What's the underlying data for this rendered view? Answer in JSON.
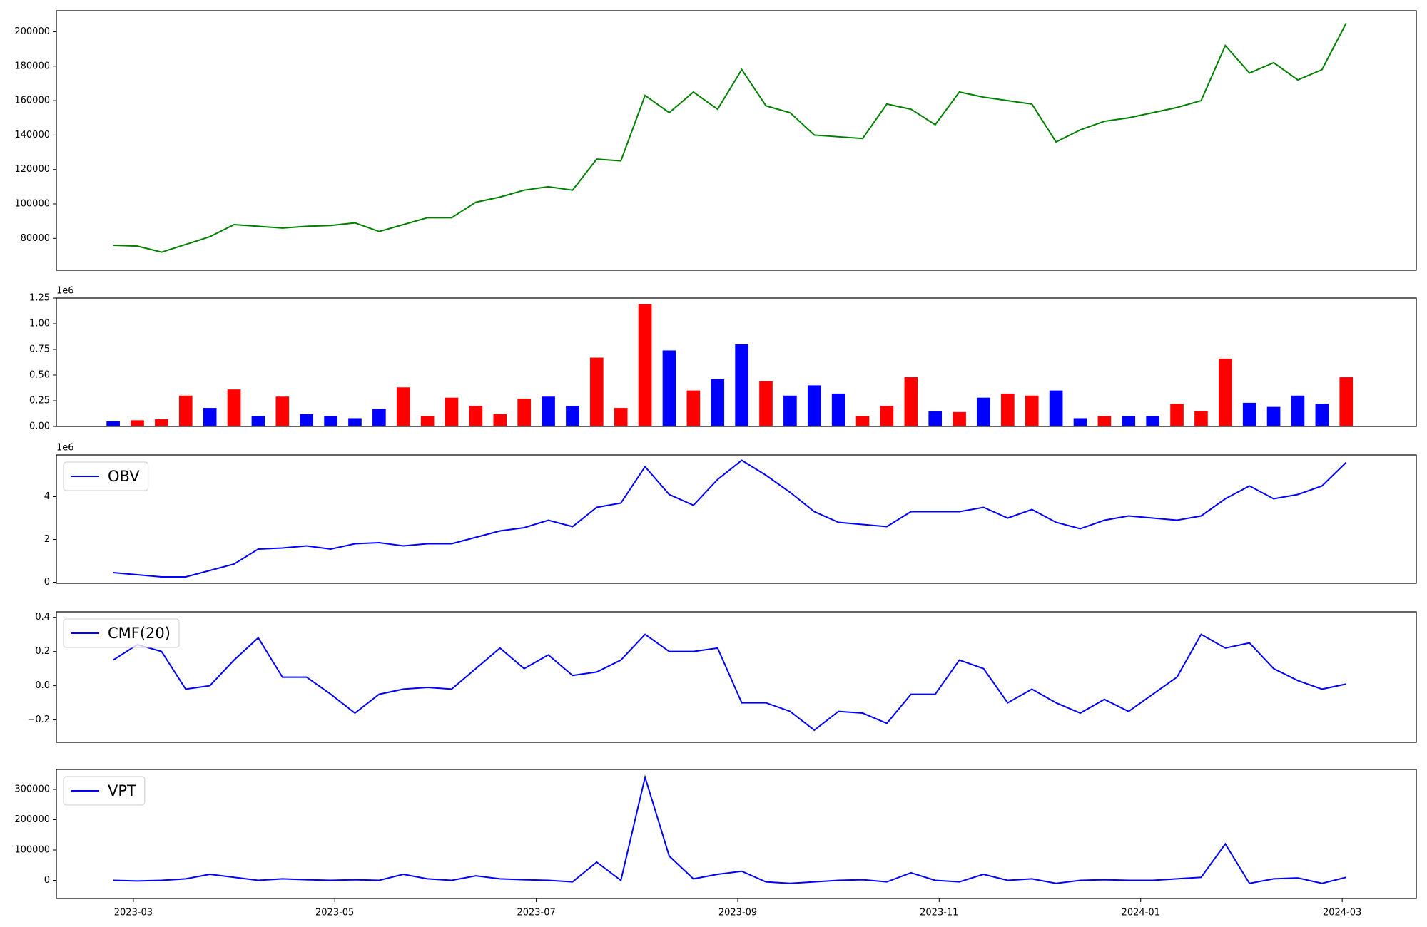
{
  "chart_data": [
    {
      "type": "line",
      "x": [
        2023.15,
        2023.17,
        2023.19,
        2023.21,
        2023.23,
        2023.25,
        2023.27,
        2023.29,
        2023.31,
        2023.33,
        2023.35,
        2023.37,
        2023.39,
        2023.41,
        2023.43,
        2023.45,
        2023.47,
        2023.49,
        2023.51,
        2023.53,
        2023.55,
        2023.57,
        2023.59,
        2023.61,
        2023.63,
        2023.65,
        2023.67,
        2023.69,
        2023.71,
        2023.73,
        2023.75,
        2023.77,
        2023.79,
        2023.81,
        2023.83,
        2023.85,
        2023.87,
        2023.89,
        2023.91,
        2023.93,
        2023.95,
        2023.97,
        2023.99,
        2024.01,
        2024.03,
        2024.05,
        2024.07,
        2024.09,
        2024.11,
        2024.13,
        2024.15,
        2024.17
      ],
      "values": [
        76000,
        75500,
        72000,
        76500,
        81000,
        88000,
        87000,
        86000,
        87000,
        87500,
        89000,
        84000,
        88000,
        92000,
        92000,
        101000,
        104000,
        108000,
        110000,
        108000,
        126000,
        125000,
        163000,
        153000,
        165000,
        155000,
        178000,
        157000,
        153000,
        140000,
        139000,
        138000,
        158000,
        155000,
        146000,
        165000,
        162000,
        160000,
        158000,
        136000,
        143000,
        148000,
        150000,
        153000,
        156000,
        160000,
        192000,
        176000,
        182000,
        172000,
        178000,
        205000
      ],
      "color": "#008000",
      "xlim": [
        2023.103,
        2024.228
      ],
      "ylim": [
        61500,
        212200
      ],
      "yticks": [
        80000,
        100000,
        120000,
        140000,
        160000,
        180000,
        200000
      ]
    },
    {
      "type": "bar",
      "x": [
        2023.15,
        2023.17,
        2023.19,
        2023.21,
        2023.23,
        2023.25,
        2023.27,
        2023.29,
        2023.31,
        2023.33,
        2023.35,
        2023.37,
        2023.39,
        2023.41,
        2023.43,
        2023.45,
        2023.47,
        2023.49,
        2023.51,
        2023.53,
        2023.55,
        2023.57,
        2023.59,
        2023.61,
        2023.63,
        2023.65,
        2023.67,
        2023.69,
        2023.71,
        2023.73,
        2023.75,
        2023.77,
        2023.79,
        2023.81,
        2023.83,
        2023.85,
        2023.87,
        2023.89,
        2023.91,
        2023.93,
        2023.95,
        2023.97,
        2023.99,
        2024.01,
        2024.03,
        2024.05,
        2024.07,
        2024.09,
        2024.11,
        2024.13,
        2024.15,
        2024.17
      ],
      "values": [
        0.05,
        0.06,
        0.07,
        0.3,
        0.18,
        0.36,
        0.1,
        0.29,
        0.12,
        0.1,
        0.08,
        0.17,
        0.38,
        0.1,
        0.28,
        0.2,
        0.12,
        0.27,
        0.29,
        0.2,
        0.67,
        0.18,
        1.19,
        0.74,
        0.35,
        0.46,
        0.8,
        0.44,
        0.3,
        0.4,
        0.32,
        0.1,
        0.2,
        0.48,
        0.15,
        0.14,
        0.28,
        0.32,
        0.3,
        0.35,
        0.08,
        0.1,
        0.1,
        0.1,
        0.22,
        0.15,
        0.66,
        0.23,
        0.19,
        0.3,
        0.22,
        0.48
      ],
      "colors": [
        "#0000ff",
        "#ff0000",
        "#ff0000",
        "#ff0000",
        "#0000ff",
        "#ff0000",
        "#0000ff",
        "#ff0000",
        "#0000ff",
        "#0000ff",
        "#0000ff",
        "#0000ff",
        "#ff0000",
        "#ff0000",
        "#ff0000",
        "#ff0000",
        "#ff0000",
        "#ff0000",
        "#0000ff",
        "#0000ff",
        "#ff0000",
        "#ff0000",
        "#ff0000",
        "#0000ff",
        "#ff0000",
        "#0000ff",
        "#0000ff",
        "#ff0000",
        "#0000ff",
        "#0000ff",
        "#0000ff",
        "#ff0000",
        "#ff0000",
        "#ff0000",
        "#0000ff",
        "#ff0000",
        "#0000ff",
        "#ff0000",
        "#ff0000",
        "#0000ff",
        "#0000ff",
        "#ff0000",
        "#0000ff",
        "#0000ff",
        "#ff0000",
        "#ff0000",
        "#ff0000",
        "#0000ff",
        "#0000ff",
        "#0000ff",
        "#0000ff",
        "#ff0000"
      ],
      "offset_text": "1e6",
      "xlim": [
        2023.103,
        2024.228
      ],
      "ylim": [
        0,
        1.25
      ],
      "yticks": [
        {
          "value": 0,
          "label": "0.00"
        },
        {
          "value": 0.25,
          "label": "0.25"
        },
        {
          "value": 0.5,
          "label": "0.50"
        },
        {
          "value": 0.75,
          "label": "0.75"
        },
        {
          "value": 1,
          "label": "1.00"
        },
        {
          "value": 1.25,
          "label": "1.25"
        }
      ]
    },
    {
      "type": "line",
      "x": [
        2023.15,
        2023.17,
        2023.19,
        2023.21,
        2023.23,
        2023.25,
        2023.27,
        2023.29,
        2023.31,
        2023.33,
        2023.35,
        2023.37,
        2023.39,
        2023.41,
        2023.43,
        2023.45,
        2023.47,
        2023.49,
        2023.51,
        2023.53,
        2023.55,
        2023.57,
        2023.59,
        2023.61,
        2023.63,
        2023.65,
        2023.67,
        2023.69,
        2023.71,
        2023.73,
        2023.75,
        2023.77,
        2023.79,
        2023.81,
        2023.83,
        2023.85,
        2023.87,
        2023.89,
        2023.91,
        2023.93,
        2023.95,
        2023.97,
        2023.99,
        2024.01,
        2024.03,
        2024.05,
        2024.07,
        2024.09,
        2024.11,
        2024.13,
        2024.15,
        2024.17
      ],
      "series": [
        {
          "name": "OBV",
          "color": "#0000ff",
          "values": [
            0.45,
            0.35,
            0.25,
            0.25,
            0.55,
            0.85,
            1.55,
            1.6,
            1.7,
            1.55,
            1.8,
            1.85,
            1.7,
            1.8,
            1.8,
            2.1,
            2.4,
            2.55,
            2.9,
            2.6,
            3.5,
            3.7,
            5.4,
            4.1,
            3.6,
            4.8,
            5.7,
            5.0,
            4.2,
            3.3,
            2.8,
            2.7,
            2.6,
            3.3,
            3.3,
            3.3,
            3.5,
            3.0,
            3.4,
            2.8,
            2.5,
            2.9,
            3.1,
            3.0,
            2.9,
            3.1,
            3.9,
            4.5,
            3.9,
            4.1,
            4.5,
            5.6
          ]
        }
      ],
      "offset_text": "1e6",
      "legend": "upper left",
      "xlim": [
        2023.103,
        2024.228
      ],
      "ylim": [
        -0.05,
        5.95
      ],
      "yticks": [
        0,
        2,
        4
      ]
    },
    {
      "type": "line",
      "x": [
        2023.15,
        2023.17,
        2023.19,
        2023.21,
        2023.23,
        2023.25,
        2023.27,
        2023.29,
        2023.31,
        2023.33,
        2023.35,
        2023.37,
        2023.39,
        2023.41,
        2023.43,
        2023.45,
        2023.47,
        2023.49,
        2023.51,
        2023.53,
        2023.55,
        2023.57,
        2023.59,
        2023.61,
        2023.63,
        2023.65,
        2023.67,
        2023.69,
        2023.71,
        2023.73,
        2023.75,
        2023.77,
        2023.79,
        2023.81,
        2023.83,
        2023.85,
        2023.87,
        2023.89,
        2023.91,
        2023.93,
        2023.95,
        2023.97,
        2023.99,
        2024.01,
        2024.03,
        2024.05,
        2024.07,
        2024.09,
        2024.11,
        2024.13,
        2024.15,
        2024.17
      ],
      "series": [
        {
          "name": "CMF(20)",
          "color": "#0000ff",
          "values": [
            0.15,
            0.24,
            0.2,
            -0.02,
            0.0,
            0.15,
            0.28,
            0.05,
            0.05,
            -0.05,
            -0.16,
            -0.05,
            -0.02,
            -0.01,
            -0.02,
            0.1,
            0.22,
            0.1,
            0.18,
            0.06,
            0.08,
            0.15,
            0.3,
            0.2,
            0.2,
            0.22,
            -0.1,
            -0.1,
            -0.15,
            -0.26,
            -0.15,
            -0.16,
            -0.22,
            -0.05,
            -0.05,
            0.15,
            0.1,
            -0.1,
            -0.02,
            -0.1,
            -0.16,
            -0.08,
            -0.15,
            -0.05,
            0.05,
            0.3,
            0.22,
            0.25,
            0.1,
            0.03,
            -0.02,
            0.01
          ]
        }
      ],
      "legend": "upper left",
      "xlim": [
        2023.103,
        2024.228
      ],
      "ylim": [
        -0.331,
        0.432
      ],
      "yticks": [
        {
          "value": -0.2,
          "label": "−0.2"
        },
        {
          "value": 0,
          "label": "0.0"
        },
        {
          "value": 0.2,
          "label": "0.2"
        },
        {
          "value": 0.4,
          "label": "0.4"
        }
      ]
    },
    {
      "type": "line",
      "x": [
        2023.15,
        2023.17,
        2023.19,
        2023.21,
        2023.23,
        2023.25,
        2023.27,
        2023.29,
        2023.31,
        2023.33,
        2023.35,
        2023.37,
        2023.39,
        2023.41,
        2023.43,
        2023.45,
        2023.47,
        2023.49,
        2023.51,
        2023.53,
        2023.55,
        2023.57,
        2023.59,
        2023.61,
        2023.63,
        2023.65,
        2023.67,
        2023.69,
        2023.71,
        2023.73,
        2023.75,
        2023.77,
        2023.79,
        2023.81,
        2023.83,
        2023.85,
        2023.87,
        2023.89,
        2023.91,
        2023.93,
        2023.95,
        2023.97,
        2023.99,
        2024.01,
        2024.03,
        2024.05,
        2024.07,
        2024.09,
        2024.11,
        2024.13,
        2024.15,
        2024.17
      ],
      "series": [
        {
          "name": "VPT",
          "color": "#0000ff",
          "values": [
            0,
            -2000,
            0,
            5000,
            20000,
            10000,
            0,
            5000,
            2000,
            0,
            2000,
            0,
            20000,
            5000,
            0,
            15000,
            5000,
            2000,
            0,
            -5000,
            60000,
            0,
            340000,
            80000,
            5000,
            20000,
            30000,
            -5000,
            -10000,
            -5000,
            0,
            2000,
            -5000,
            25000,
            0,
            -5000,
            20000,
            0,
            5000,
            -10000,
            0,
            2000,
            0,
            0,
            5000,
            10000,
            120000,
            -10000,
            5000,
            8000,
            -10000,
            10000
          ]
        }
      ],
      "legend": "upper left",
      "xlim": [
        2023.103,
        2024.228
      ],
      "ylim": [
        -60000,
        366000
      ],
      "yticks": [
        0,
        100000,
        200000,
        300000
      ],
      "xticks": [
        {
          "value": 2023.1667,
          "label": "2023-03"
        },
        {
          "value": 2023.3333,
          "label": "2023-05"
        },
        {
          "value": 2023.5,
          "label": "2023-07"
        },
        {
          "value": 2023.6667,
          "label": "2023-09"
        },
        {
          "value": 2023.8333,
          "label": "2023-11"
        },
        {
          "value": 2024.0,
          "label": "2024-01"
        },
        {
          "value": 2024.1667,
          "label": "2024-03"
        }
      ]
    }
  ]
}
